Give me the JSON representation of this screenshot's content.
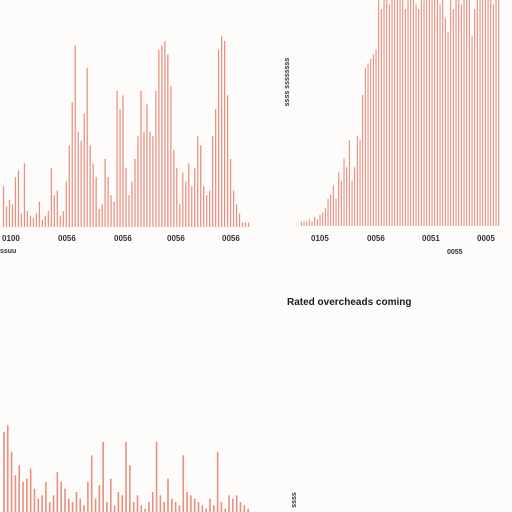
{
  "caption": "Rated overcheads coming",
  "chart_data": [
    {
      "type": "bar",
      "title": "",
      "xlabel": "ssuu",
      "ylabel": "",
      "tick_labels": [
        "0100",
        "0056",
        "0056",
        "0056",
        "0056"
      ],
      "values": [
        18,
        9,
        12,
        10,
        22,
        25,
        6,
        28,
        7,
        5,
        4,
        6,
        11,
        3,
        5,
        7,
        26,
        14,
        16,
        5,
        7,
        20,
        36,
        55,
        80,
        42,
        38,
        50,
        70,
        36,
        28,
        22,
        8,
        10,
        30,
        22,
        14,
        11,
        60,
        52,
        58,
        26,
        14,
        20,
        30,
        40,
        60,
        42,
        54,
        42,
        40,
        60,
        78,
        80,
        82,
        76,
        62,
        34,
        26,
        10,
        24,
        20,
        28,
        18,
        26,
        40,
        36,
        18,
        14,
        16,
        40,
        52,
        78,
        84,
        82,
        58,
        30,
        16,
        10,
        6,
        2,
        2,
        2
      ],
      "ylim": [
        0,
        100
      ]
    },
    {
      "type": "bar",
      "title": "",
      "xlabel": "0055",
      "ylabel": "ssss ssssssss",
      "tick_labels": [
        "0105",
        "0056",
        "0051",
        "0005"
      ],
      "values": [
        2,
        2,
        2,
        3,
        2,
        4,
        3,
        5,
        6,
        8,
        12,
        14,
        18,
        12,
        24,
        20,
        30,
        26,
        38,
        20,
        26,
        40,
        38,
        58,
        70,
        72,
        74,
        76,
        78,
        100,
        96,
        100,
        100,
        98,
        100,
        100,
        100,
        100,
        100,
        96,
        100,
        100,
        100,
        98,
        96,
        100,
        100,
        100,
        100,
        100,
        100,
        100,
        98,
        100,
        92,
        86,
        100,
        96,
        100,
        100,
        98,
        100,
        100,
        100,
        84,
        96,
        100,
        100,
        100,
        100,
        100,
        100,
        98,
        100,
        100
      ],
      "ylim": [
        0,
        100
      ]
    },
    {
      "type": "bar",
      "title": "",
      "xlabel": "",
      "ylabel": "ssss",
      "tick_labels": [],
      "values": [
        48,
        52,
        36,
        22,
        28,
        18,
        20,
        26,
        14,
        8,
        10,
        18,
        6,
        10,
        24,
        18,
        14,
        8,
        6,
        12,
        8,
        4,
        18,
        34,
        8,
        16,
        42,
        6,
        20,
        4,
        12,
        10,
        42,
        28,
        6,
        10,
        4,
        2,
        6,
        12,
        42,
        10,
        6,
        20,
        8,
        6,
        4,
        34,
        12,
        10,
        8,
        6,
        4,
        2,
        8,
        4,
        36,
        6,
        2,
        10,
        8,
        10,
        6,
        4,
        2
      ],
      "ylim": [
        0,
        100
      ]
    }
  ],
  "colors": {
    "bar": "#e8907f",
    "background": "#fdfcfb",
    "text": "#333333"
  }
}
